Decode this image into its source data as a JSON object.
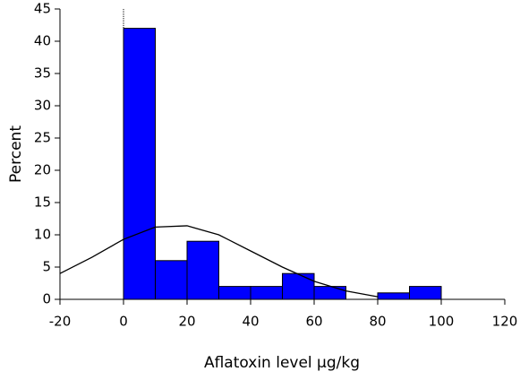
{
  "chart_data": {
    "type": "histogram",
    "xlabel": "Aflatoxin level µg/kg",
    "ylabel": "Percent",
    "bins": [
      0,
      10,
      20,
      30,
      40,
      50,
      60,
      70,
      80,
      90,
      100
    ],
    "values": [
      42,
      6,
      9,
      2,
      2,
      4,
      2,
      0,
      1,
      2
    ],
    "color": "#0000ff",
    "curve": {
      "x": [
        -20,
        -10,
        0,
        10,
        20,
        30,
        40,
        50,
        60,
        70,
        80
      ],
      "values": [
        4,
        6.5,
        9.3,
        11.2,
        11.4,
        10,
        7.5,
        5,
        2.8,
        1.3,
        0.4
      ],
      "color": "#000000"
    },
    "xlim": [
      -20,
      120
    ],
    "xticks": [
      -20,
      0,
      20,
      40,
      60,
      80,
      100,
      120
    ],
    "ylim": [
      0,
      45
    ],
    "yticks": [
      0,
      5,
      10,
      15,
      20,
      25,
      30,
      35,
      40,
      45
    ]
  }
}
